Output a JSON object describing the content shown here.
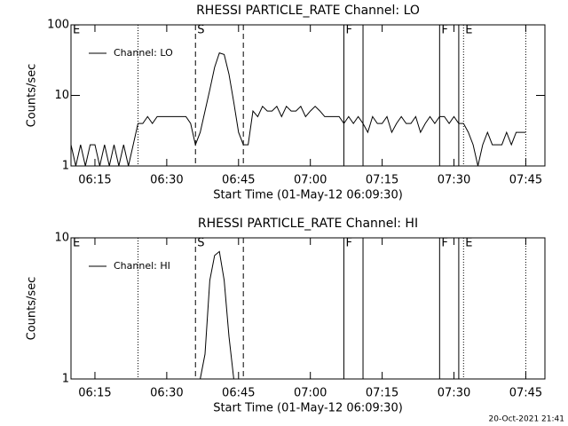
{
  "chart_data": [
    {
      "type": "line",
      "title": "RHESSI PARTICLE_RATE Channel: LO",
      "xlabel": "Start Time (01-May-12 06:09:30)",
      "ylabel": "Counts/sec",
      "log_y": true,
      "legend": "top-left",
      "xlim": [
        "06:10",
        "07:49"
      ],
      "ylim": [
        1,
        100
      ],
      "yticks": [
        1,
        10,
        100
      ],
      "xticks": [
        "06:15",
        "06:30",
        "06:45",
        "07:00",
        "07:15",
        "07:30",
        "07:45"
      ],
      "x": [
        "06:10",
        "06:11",
        "06:12",
        "06:13",
        "06:14",
        "06:15",
        "06:16",
        "06:17",
        "06:18",
        "06:19",
        "06:20",
        "06:21",
        "06:22",
        "06:23",
        "06:24",
        "06:25",
        "06:26",
        "06:27",
        "06:28",
        "06:29",
        "06:30",
        "06:31",
        "06:32",
        "06:33",
        "06:34",
        "06:35",
        "06:36",
        "06:37",
        "06:38",
        "06:39",
        "06:40",
        "06:41",
        "06:42",
        "06:43",
        "06:44",
        "06:45",
        "06:46",
        "06:47",
        "06:48",
        "06:49",
        "06:50",
        "06:51",
        "06:52",
        "06:53",
        "06:54",
        "06:55",
        "06:56",
        "06:57",
        "06:58",
        "06:59",
        "07:00",
        "07:01",
        "07:02",
        "07:03",
        "07:04",
        "07:05",
        "07:06",
        "07:07",
        "07:08",
        "07:09",
        "07:10",
        "07:11",
        "07:12",
        "07:13",
        "07:14",
        "07:15",
        "07:16",
        "07:17",
        "07:18",
        "07:19",
        "07:20",
        "07:21",
        "07:22",
        "07:23",
        "07:24",
        "07:25",
        "07:26",
        "07:27",
        "07:28",
        "07:29",
        "07:30",
        "07:31",
        "07:32",
        "07:33",
        "07:34",
        "07:35",
        "07:36",
        "07:37",
        "07:38",
        "07:39",
        "07:40",
        "07:41",
        "07:42",
        "07:43",
        "07:44",
        "07:45"
      ],
      "series": [
        {
          "name": "Channel: LO",
          "color": "#000000",
          "values": [
            2,
            1,
            2,
            1,
            2,
            2,
            1,
            2,
            1,
            2,
            1,
            2,
            1,
            2,
            4,
            4,
            5,
            4,
            5,
            5,
            5,
            5,
            5,
            5,
            5,
            4,
            2,
            3,
            6,
            12,
            25,
            40,
            38,
            20,
            8,
            3,
            2,
            2,
            6,
            5,
            7,
            6,
            6,
            7,
            5,
            7,
            6,
            6,
            7,
            5,
            6,
            7,
            6,
            5,
            5,
            5,
            5,
            4,
            5,
            4,
            5,
            4,
            3,
            5,
            4,
            4,
            5,
            3,
            4,
            5,
            4,
            4,
            5,
            3,
            4,
            5,
            4,
            5,
            5,
            4,
            5,
            4,
            4,
            3,
            2,
            1,
            2,
            3,
            2,
            2,
            2,
            3,
            2,
            3,
            3,
            3
          ]
        }
      ],
      "marker_lines": [
        {
          "x": "06:24",
          "style": "dotted"
        },
        {
          "x": "06:36",
          "style": "dashed"
        },
        {
          "x": "06:46",
          "style": "dashed"
        },
        {
          "x": "07:07",
          "style": "solid"
        },
        {
          "x": "07:11",
          "style": "solid"
        },
        {
          "x": "07:27",
          "style": "solid"
        },
        {
          "x": "07:31",
          "style": "solid"
        },
        {
          "x": "07:32",
          "style": "dotted"
        },
        {
          "x": "07:45",
          "style": "dotted"
        }
      ],
      "flags": [
        {
          "x": "06:10",
          "label": "E"
        },
        {
          "x": "06:36",
          "label": "S"
        },
        {
          "x": "07:07",
          "label": "F"
        },
        {
          "x": "07:27",
          "label": "F"
        },
        {
          "x": "07:32",
          "label": "E"
        }
      ]
    },
    {
      "type": "line",
      "title": "RHESSI PARTICLE_RATE Channel: HI",
      "xlabel": "Start Time (01-May-12 06:09:30)",
      "ylabel": "Counts/sec",
      "log_y": true,
      "legend": "top-left",
      "xlim": [
        "06:10",
        "07:49"
      ],
      "ylim": [
        1,
        10
      ],
      "yticks": [
        1,
        10
      ],
      "xticks": [
        "06:15",
        "06:30",
        "06:45",
        "07:00",
        "07:15",
        "07:30",
        "07:45"
      ],
      "x": [
        "06:37",
        "06:38",
        "06:39",
        "06:40",
        "06:41",
        "06:42",
        "06:43",
        "06:44"
      ],
      "series": [
        {
          "name": "Channel: HI",
          "color": "#000000",
          "values": [
            1,
            1.5,
            5,
            7.5,
            8,
            5,
            2,
            1
          ]
        }
      ],
      "marker_lines": [
        {
          "x": "06:24",
          "style": "dotted"
        },
        {
          "x": "06:36",
          "style": "dashed"
        },
        {
          "x": "06:46",
          "style": "dashed"
        },
        {
          "x": "07:07",
          "style": "solid"
        },
        {
          "x": "07:11",
          "style": "solid"
        },
        {
          "x": "07:27",
          "style": "solid"
        },
        {
          "x": "07:31",
          "style": "solid"
        },
        {
          "x": "07:32",
          "style": "dotted"
        },
        {
          "x": "07:45",
          "style": "dotted"
        }
      ],
      "flags": [
        {
          "x": "06:10",
          "label": "E"
        },
        {
          "x": "06:36",
          "label": "S"
        },
        {
          "x": "07:07",
          "label": "F"
        },
        {
          "x": "07:27",
          "label": "F"
        },
        {
          "x": "07:32",
          "label": "E"
        }
      ]
    }
  ],
  "footer": "20-Oct-2021 21:41"
}
